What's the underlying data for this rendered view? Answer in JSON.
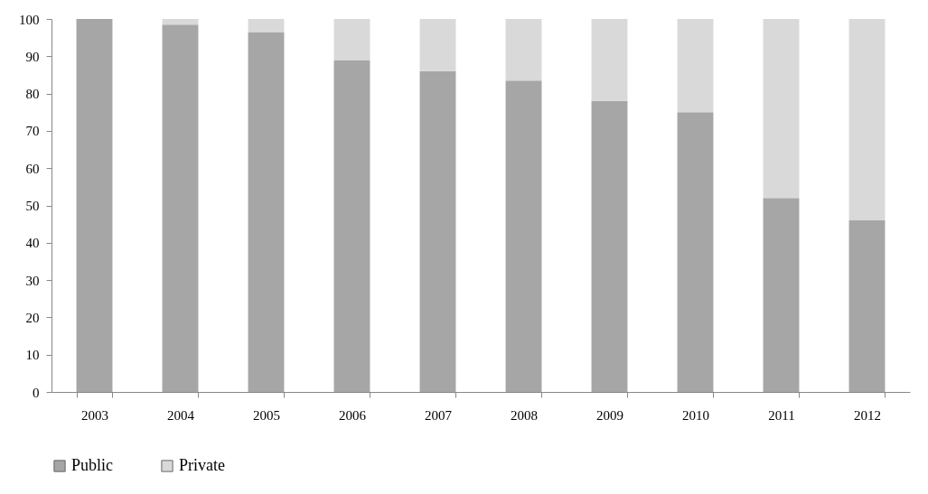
{
  "chart_data": {
    "type": "bar",
    "stacked": true,
    "categories": [
      "2003",
      "2004",
      "2005",
      "2006",
      "2007",
      "2008",
      "2009",
      "2010",
      "2011",
      "2012"
    ],
    "series": [
      {
        "name": "Public",
        "color": "#a6a6a6",
        "values": [
          100,
          98.5,
          96.5,
          89,
          86,
          83.5,
          78,
          75,
          52,
          46
        ]
      },
      {
        "name": "Private",
        "color": "#d9d9d9",
        "values": [
          0,
          1.5,
          3.5,
          11,
          14,
          16.5,
          22,
          25,
          48,
          54
        ]
      }
    ],
    "ylim": [
      0,
      100
    ],
    "yticks": [
      0,
      10,
      20,
      30,
      40,
      50,
      60,
      70,
      80,
      90,
      100
    ],
    "grid": false,
    "legend": "bottom"
  }
}
